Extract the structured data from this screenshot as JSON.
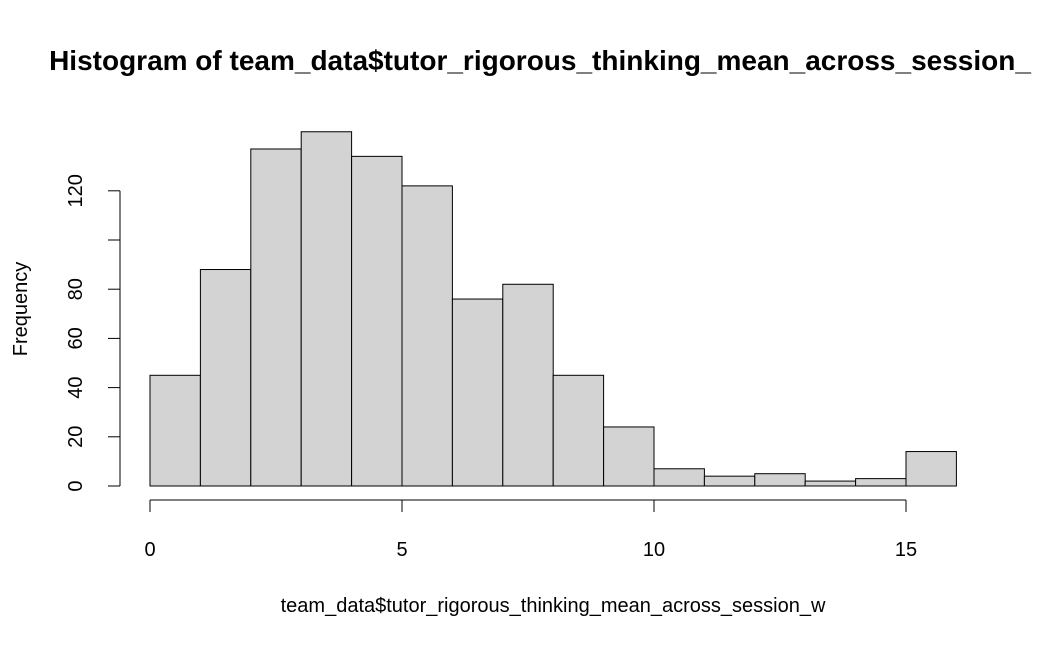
{
  "chart_data": {
    "type": "bar",
    "title": "Histogram of team_data$tutor_rigorous_thinking_mean_across_session_",
    "xlabel": "team_data$tutor_rigorous_thinking_mean_across_session_w",
    "ylabel": "Frequency",
    "bins": [
      [
        0,
        1
      ],
      [
        1,
        2
      ],
      [
        2,
        3
      ],
      [
        3,
        4
      ],
      [
        4,
        5
      ],
      [
        5,
        6
      ],
      [
        6,
        7
      ],
      [
        7,
        8
      ],
      [
        8,
        9
      ],
      [
        9,
        10
      ],
      [
        10,
        11
      ],
      [
        11,
        12
      ],
      [
        12,
        13
      ],
      [
        13,
        14
      ],
      [
        14,
        15
      ],
      [
        15,
        16
      ]
    ],
    "values": [
      45,
      88,
      137,
      144,
      134,
      122,
      76,
      82,
      45,
      24,
      7,
      4,
      5,
      2,
      3,
      14
    ],
    "xlim": [
      0,
      16
    ],
    "ylim": [
      0,
      140
    ],
    "x_ticks": [
      0,
      5,
      10,
      15
    ],
    "x_tick_labels": [
      "0",
      "5",
      "10",
      "15"
    ],
    "y_ticks": [
      0,
      20,
      40,
      60,
      80,
      100,
      120
    ],
    "y_tick_labels": [
      "0",
      "20",
      "40",
      "60",
      "80",
      "",
      "120"
    ],
    "bar_fill": "#d3d3d3",
    "bar_stroke": "#000000",
    "grid": false
  }
}
